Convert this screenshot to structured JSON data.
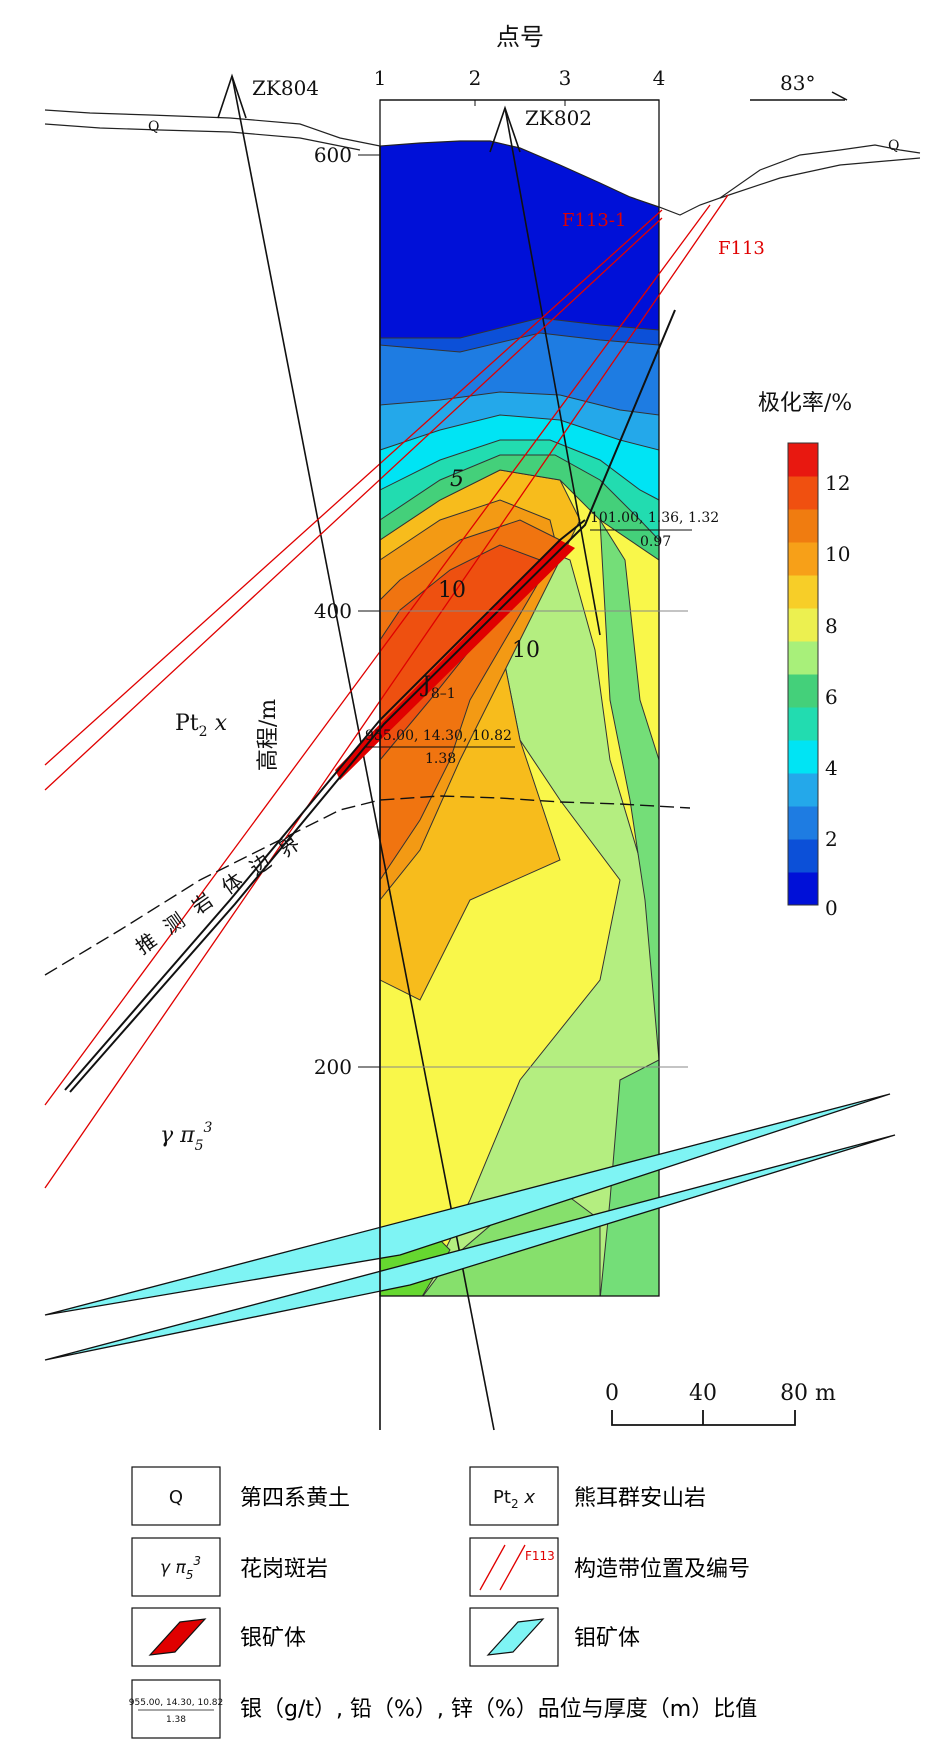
{
  "header": {
    "station_title": "点号",
    "station_numbers": [
      "1",
      "2",
      "3",
      "4"
    ],
    "north_arrow": "83°"
  },
  "drillholes": [
    "ZK804",
    "ZK802"
  ],
  "faults": [
    "F113-1",
    "F113"
  ],
  "quaternary_label": "Q",
  "elevation_axis": {
    "title": "高程/m",
    "ticks": [
      "600",
      "400",
      "200"
    ]
  },
  "contour_labels": [
    "5",
    "10",
    "10"
  ],
  "orebody": {
    "name": "J",
    "subscript": "8–1",
    "grade_line": "955.00, 14.30, 10.82",
    "thickness_line": "1.38"
  },
  "upper_sample": {
    "grade_line": "101.00, 1.36, 1.32",
    "thickness_line": "0.97"
  },
  "rock_units": {
    "xiong_er": {
      "main": "Pt",
      "sub": "2",
      "suffix": " x"
    },
    "granite_porphyry": {
      "main": "γ π",
      "sub": "5",
      "sup": "3"
    }
  },
  "boundary_label": [
    "推",
    "测",
    "岩",
    "体",
    "边",
    "界"
  ],
  "colorbar": {
    "title": "极化率/%",
    "ticks": [
      "12",
      "10",
      "8",
      "6",
      "4",
      "2",
      "0"
    ],
    "colors": [
      "#0010d8",
      "#0c50d8",
      "#1e7ce2",
      "#24a8ea",
      "#00e4f4",
      "#22dcb0",
      "#44d07a",
      "#a8f07a",
      "#ecf050",
      "#f7ce28",
      "#f7a018",
      "#f07c10",
      "#f05010",
      "#e81810"
    ]
  },
  "scale_bar": {
    "ticks": [
      "0",
      "40",
      "80 m"
    ]
  },
  "legend": [
    {
      "symbol": "Q",
      "label": "第四系黄土"
    },
    {
      "symbol": "Pt2x",
      "label": "熊耳群安山岩"
    },
    {
      "symbol": "γπ53",
      "label": "花岗斑岩"
    },
    {
      "symbol": "F113",
      "label": "构造带位置及编号"
    },
    {
      "symbol": "silver-ore",
      "label": "银矿体"
    },
    {
      "symbol": "molybdenum-ore",
      "label": "钼矿体"
    },
    {
      "symbol": "grade-ratio",
      "label": "银（g/t）, 铅（%）, 锌（%）品位与厚度（m）比值",
      "sample_grade": "955.00, 14.30, 10.82",
      "sample_thickness": "1.38"
    }
  ]
}
